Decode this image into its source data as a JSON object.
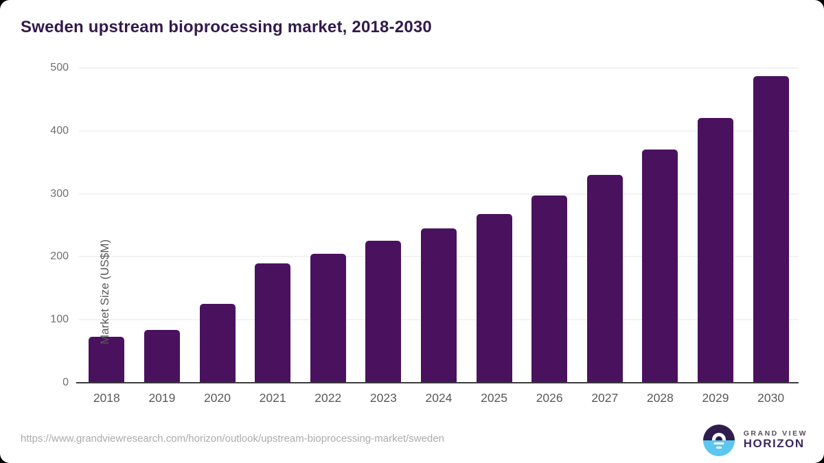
{
  "title": "Sweden upstream bioprocessing market, 2018-2030",
  "source_url": "https://www.grandviewresearch.com/horizon/outlook/upstream-bioprocessing-market/sweden",
  "logo": {
    "line1": "GRAND VIEW",
    "line2": "HORIZON",
    "icon": "sunrise-horizon-icon"
  },
  "colors": {
    "bar_color": "#4a115e",
    "title_color": "#321a4a",
    "grid_color": "#e4e4e4",
    "axis_color": "#3a3a3c",
    "ytick_color": "#6e6f71",
    "xlabel_color": "#58595b",
    "url_color": "#ababab",
    "logo_dark": "#2f1e4d",
    "logo_blue": "#5bc6f0",
    "grandview_color": "#55505f",
    "horizon_color": "#3b2b5e"
  },
  "chart_data": {
    "type": "bar",
    "title": "Sweden upstream bioprocessing market, 2018-2030",
    "categories": [
      "2018",
      "2019",
      "2020",
      "2021",
      "2022",
      "2023",
      "2024",
      "2025",
      "2026",
      "2027",
      "2028",
      "2029",
      "2030"
    ],
    "values": [
      73,
      84,
      125,
      190,
      205,
      225,
      245,
      268,
      297,
      330,
      370,
      420,
      487
    ],
    "xlabel": "",
    "ylabel": "Market Size (US$M)",
    "ylim": [
      0,
      500
    ],
    "yticks": [
      0,
      100,
      200,
      300,
      400,
      500
    ],
    "grid": "horizontal",
    "legend": "none"
  }
}
